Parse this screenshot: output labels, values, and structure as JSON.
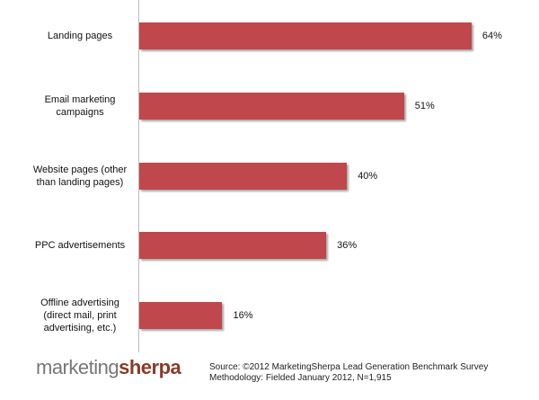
{
  "chart_data": {
    "type": "bar",
    "orientation": "horizontal",
    "categories": [
      "Landing pages",
      "Email marketing campaigns",
      "Website pages (other than landing pages)",
      "PPC advertisements",
      "Offline advertising (direct mail, print advertising, etc.)"
    ],
    "values": [
      64,
      51,
      40,
      36,
      16
    ],
    "value_labels": [
      "64%",
      "51%",
      "40%",
      "36%",
      "16%"
    ],
    "color": "#c0474b"
  },
  "footer": {
    "logo": {
      "part1": "marketing",
      "part2": "sherpa"
    },
    "source": [
      "Source: ©2012 MarketingSherpa Lead Generation Benchmark Survey",
      "Methodology: Fielded January 2012, N=1,915"
    ]
  }
}
